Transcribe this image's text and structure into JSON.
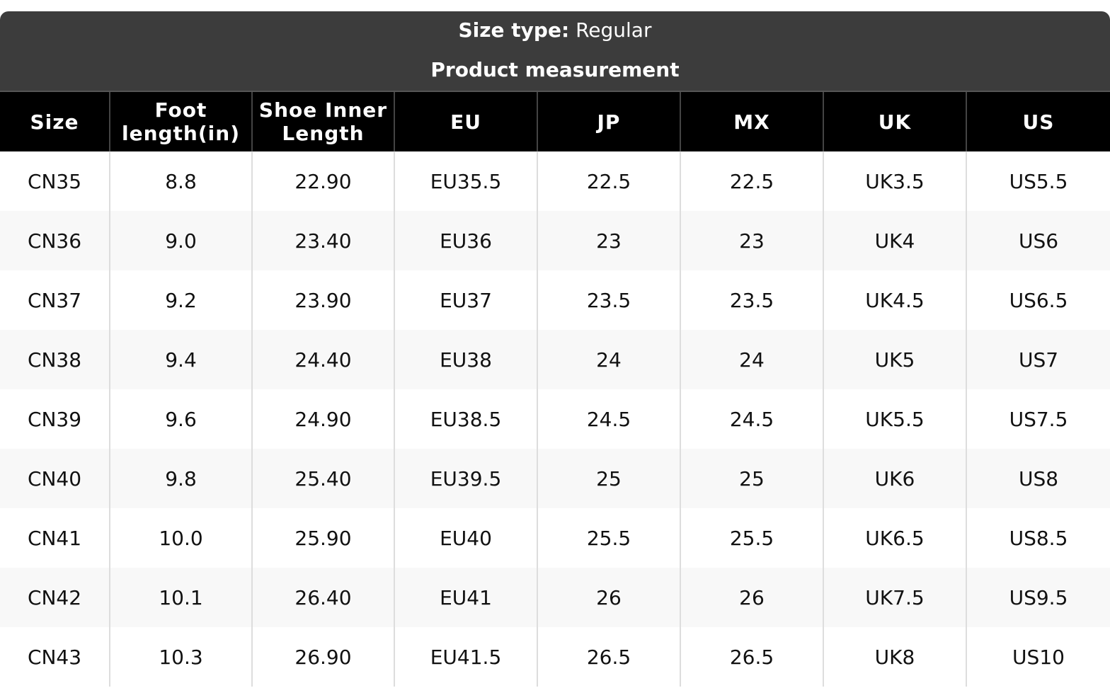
{
  "header": {
    "size_type_label": "Size type:",
    "size_type_value": "Regular",
    "title": "Product measurement"
  },
  "table": {
    "columns": [
      "Size",
      "Foot length(in)",
      "Shoe Inner Length",
      "EU",
      "JP",
      "MX",
      "UK",
      "US"
    ],
    "rows": [
      [
        "CN35",
        "8.8",
        "22.90",
        "EU35.5",
        "22.5",
        "22.5",
        "UK3.5",
        "US5.5"
      ],
      [
        "CN36",
        "9.0",
        "23.40",
        "EU36",
        "23",
        "23",
        "UK4",
        "US6"
      ],
      [
        "CN37",
        "9.2",
        "23.90",
        "EU37",
        "23.5",
        "23.5",
        "UK4.5",
        "US6.5"
      ],
      [
        "CN38",
        "9.4",
        "24.40",
        "EU38",
        "24",
        "24",
        "UK5",
        "US7"
      ],
      [
        "CN39",
        "9.6",
        "24.90",
        "EU38.5",
        "24.5",
        "24.5",
        "UK5.5",
        "US7.5"
      ],
      [
        "CN40",
        "9.8",
        "25.40",
        "EU39.5",
        "25",
        "25",
        "UK6",
        "US8"
      ],
      [
        "CN41",
        "10.0",
        "25.90",
        "EU40",
        "25.5",
        "25.5",
        "UK6.5",
        "US8.5"
      ],
      [
        "CN42",
        "10.1",
        "26.40",
        "EU41",
        "26",
        "26",
        "UK7.5",
        "US9.5"
      ],
      [
        "CN43",
        "10.3",
        "26.90",
        "EU41.5",
        "26.5",
        "26.5",
        "UK8",
        "US10"
      ]
    ]
  }
}
